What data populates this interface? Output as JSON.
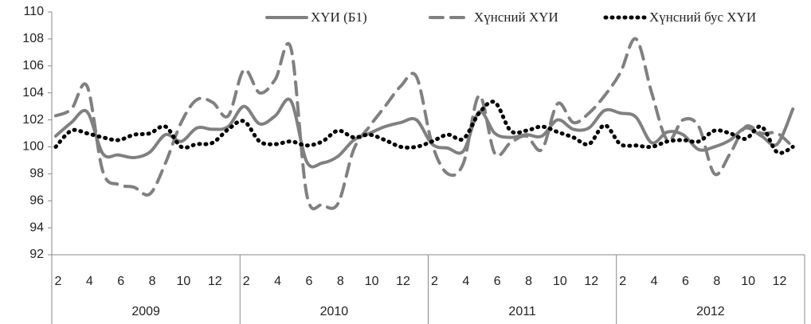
{
  "chart_data": {
    "type": "line",
    "categories": [
      "2",
      null,
      "4",
      null,
      "6",
      null,
      "8",
      null,
      "10",
      null,
      "12",
      null,
      "2",
      null,
      "4",
      null,
      "6",
      null,
      "8",
      null,
      "10",
      null,
      "12",
      null,
      "2",
      null,
      "4",
      null,
      "6",
      null,
      "8",
      null,
      "10",
      null,
      "12",
      null,
      "2",
      null,
      "4",
      null,
      "6",
      null,
      "8",
      null,
      "10",
      null,
      "12",
      null
    ],
    "groups": [
      "2009",
      "2010",
      "2011",
      "2012"
    ],
    "ylim": [
      92,
      110
    ],
    "yticks": [
      92,
      94,
      96,
      98,
      100,
      102,
      104,
      106,
      108,
      110
    ],
    "legend": "top",
    "series": [
      {
        "name": "ХҮИ (Б1)",
        "color": "#808080",
        "dash": "solid",
        "values": [
          100.8,
          101.8,
          102.6,
          99.5,
          99.4,
          99.2,
          99.6,
          100.9,
          100.4,
          101.4,
          101.3,
          101.5,
          103.0,
          101.7,
          102.3,
          103.4,
          98.9,
          98.8,
          99.3,
          100.5,
          101.0,
          101.5,
          101.8,
          102.0,
          100.2,
          99.9,
          99.7,
          102.6,
          101.0,
          100.7,
          100.9,
          100.8,
          102.0,
          101.3,
          101.4,
          102.7,
          102.5,
          102.2,
          100.3,
          101.1,
          100.9,
          99.8,
          100.0,
          100.5,
          101.4,
          100.8,
          100.2,
          102.8
        ]
      },
      {
        "name": "Хүнсний ХҮИ",
        "color": "#808080",
        "dash": "dash",
        "values": [
          102.3,
          102.8,
          104.5,
          98.2,
          97.2,
          97.0,
          96.5,
          98.8,
          101.8,
          103.5,
          103.3,
          102.3,
          105.7,
          104.0,
          105.0,
          107.3,
          96.5,
          95.7,
          95.8,
          99.8,
          101.5,
          103.0,
          104.5,
          105.2,
          100.2,
          98.0,
          98.8,
          103.8,
          99.5,
          100.3,
          100.8,
          99.8,
          103.2,
          101.8,
          102.5,
          103.8,
          105.5,
          108.0,
          104.0,
          100.5,
          102.0,
          101.5,
          98.0,
          99.5,
          101.5,
          101.0,
          101.0,
          100.0
        ]
      },
      {
        "name": "Хүнсний бус ХҮИ",
        "color": "#000000",
        "dash": "dot",
        "values": [
          100.0,
          101.2,
          101.0,
          100.7,
          100.5,
          100.9,
          101.0,
          101.5,
          100.0,
          100.2,
          100.3,
          101.3,
          101.9,
          100.4,
          100.2,
          100.4,
          100.1,
          100.4,
          101.2,
          100.7,
          100.9,
          100.5,
          100.0,
          100.0,
          100.4,
          100.9,
          100.6,
          102.5,
          103.3,
          101.2,
          101.2,
          101.5,
          101.1,
          100.7,
          100.2,
          101.6,
          100.2,
          100.1,
          100.0,
          100.4,
          100.5,
          100.4,
          101.2,
          101.0,
          100.6,
          101.5,
          99.6,
          100.0
        ]
      }
    ]
  }
}
